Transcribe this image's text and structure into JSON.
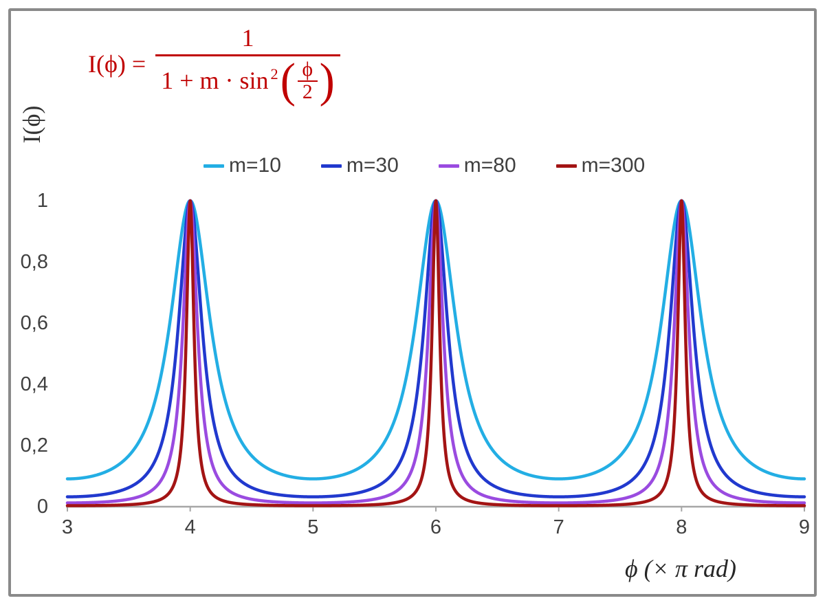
{
  "chart_data": {
    "type": "line",
    "description": "Airy / Fabry-Perot transmission function I(phi) = 1 / (1 + m * sin^2(phi/2)) with phi expressed in units of pi rad",
    "xlabel": "ϕ  (× π rad)",
    "ylabel": "I(ϕ)",
    "x_range": [
      3,
      9
    ],
    "y_range": [
      0,
      1
    ],
    "x_ticks": [
      3,
      4,
      5,
      6,
      7,
      8,
      9
    ],
    "y_ticks": [
      {
        "value": 0,
        "label": "0"
      },
      {
        "value": 0.2,
        "label": "0,2"
      },
      {
        "value": 0.4,
        "label": "0,4"
      },
      {
        "value": 0.6,
        "label": "0,6"
      },
      {
        "value": 0.8,
        "label": "0,8"
      },
      {
        "value": 1,
        "label": "1"
      }
    ],
    "grid": false,
    "legend_position": "top-center",
    "peaks_at_x": [
      4,
      6,
      8
    ],
    "peak_value": 1,
    "series": [
      {
        "name": "m=10",
        "m": 10,
        "color": "#23AEE4",
        "min_value": 0.0909
      },
      {
        "name": "m=30",
        "m": 30,
        "color": "#2139CE",
        "min_value": 0.0323
      },
      {
        "name": "m=80",
        "m": 80,
        "color": "#9A4BE0",
        "min_value": 0.0123
      },
      {
        "name": "m=300",
        "m": 300,
        "color": "#A31414",
        "min_value": 0.0033
      }
    ],
    "formula": {
      "lhs": "I(ϕ) =",
      "numerator": "1",
      "den_prefix": "1 + m · sin",
      "den_sup": "2",
      "open_paren": "(",
      "close_paren": ")",
      "inner_num": "ϕ",
      "inner_den": "2",
      "color": "#C00000"
    },
    "axis_color": "#a6a6a6",
    "frame_color": "#8a8a8a"
  }
}
